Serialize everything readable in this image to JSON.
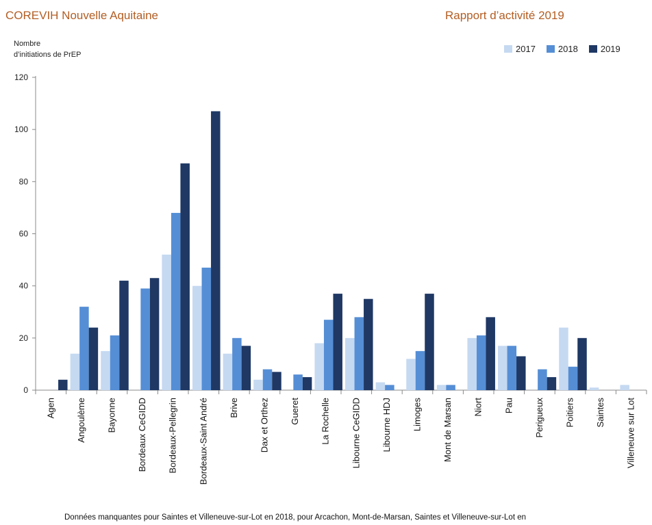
{
  "header": {
    "left_title": "COREVIH Nouvelle Aquitaine",
    "right_title": "Rapport d’activité 2019"
  },
  "footnote": "Données manquantes pour Saintes et Villeneuve-sur-Lot en 2018, pour Arcachon, Mont-de-Marsan, Saintes et Villeneuve-sur-Lot en",
  "chart_data": {
    "type": "bar",
    "ylabel_line1": "Nombre",
    "ylabel_line2": "d’initiations de PrEP",
    "ylim": [
      0,
      120
    ],
    "yticks": [
      0,
      20,
      40,
      60,
      80,
      100,
      120
    ],
    "grid": false,
    "legend_position": "top-right",
    "categories": [
      "Agen",
      "Angoulème",
      "Bayonne",
      "Bordeaux CeGIDD",
      "Bordeaux-Pellegrin",
      "Bordeaux-Saint André",
      "Brive",
      "Dax et Orthez",
      "Gueret",
      "La Rochelle",
      "Libourne CeGIDD",
      "Libourne HDJ",
      "Limoges",
      "Mont de Marsan",
      "Niort",
      "Pau",
      "Perigueux",
      "Poitiers",
      "Saintes",
      "Villeneuve sur Lot"
    ],
    "series": [
      {
        "name": "2017",
        "color": "#c5d9f1",
        "values": [
          0,
          14,
          15,
          0,
          52,
          40,
          14,
          4,
          0,
          18,
          20,
          3,
          12,
          2,
          20,
          17,
          0,
          24,
          1,
          2
        ]
      },
      {
        "name": "2018",
        "color": "#558ed5",
        "values": [
          0,
          32,
          21,
          39,
          68,
          47,
          20,
          8,
          6,
          27,
          28,
          2,
          15,
          2,
          21,
          17,
          8,
          9,
          0,
          0
        ]
      },
      {
        "name": "2019",
        "color": "#1f3864",
        "values": [
          4,
          24,
          42,
          43,
          87,
          107,
          17,
          7,
          5,
          37,
          35,
          0,
          37,
          0,
          28,
          13,
          5,
          20,
          0,
          0
        ]
      }
    ]
  }
}
